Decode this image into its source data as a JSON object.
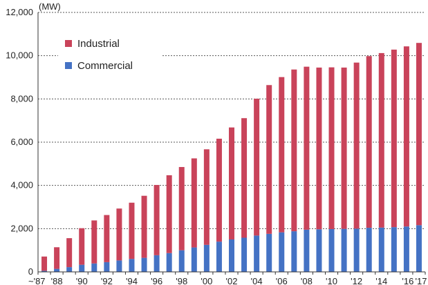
{
  "chart_data": {
    "type": "bar",
    "stacked": true,
    "unit_label": "(MW)",
    "categories": [
      "~'87",
      "'88",
      "'89",
      "'90",
      "'91",
      "'92",
      "'93",
      "'94",
      "'95",
      "'96",
      "'97",
      "'98",
      "'99",
      "'00",
      "'01",
      "'02",
      "'03",
      "'04",
      "'05",
      "'06",
      "'07",
      "'08",
      "'09",
      "'10",
      "'11",
      "'12",
      "'13",
      "'14",
      "'15",
      "'16",
      "'17"
    ],
    "x_tick_labels": [
      "~'87",
      "'88",
      "",
      "'90",
      "",
      "'92",
      "",
      "'94",
      "",
      "'96",
      "",
      "'98",
      "",
      "'00",
      "",
      "'02",
      "",
      "'04",
      "",
      "'06",
      "",
      "'08",
      "",
      "'10",
      "",
      "'12",
      "",
      "'14",
      "",
      "'16",
      "'17"
    ],
    "series": [
      {
        "name": "Commercial",
        "color": "#4472c4",
        "values": [
          50,
          140,
          220,
          330,
          390,
          450,
          530,
          600,
          650,
          770,
          870,
          1000,
          1130,
          1250,
          1400,
          1500,
          1580,
          1680,
          1760,
          1830,
          1880,
          1950,
          1970,
          1980,
          1990,
          2000,
          2040,
          2050,
          2070,
          2100,
          2160
        ]
      },
      {
        "name": "Industrial",
        "color": "#c9435a",
        "values": [
          660,
          1000,
          1340,
          1690,
          1990,
          2180,
          2400,
          2600,
          2870,
          3250,
          3600,
          3850,
          4120,
          4420,
          4760,
          5180,
          5530,
          6330,
          6880,
          7180,
          7480,
          7540,
          7480,
          7480,
          7460,
          7680,
          7940,
          8070,
          8210,
          8330,
          8430
        ]
      }
    ],
    "ylim": [
      0,
      12000
    ],
    "y_ticks": [
      0,
      2000,
      4000,
      6000,
      8000,
      10000,
      12000
    ],
    "y_tick_labels": [
      "0",
      "2,000",
      "4,000",
      "6,000",
      "8,000",
      "10,000",
      "12,000"
    ],
    "grid": "dotted horizontal",
    "legend_position": "top-left",
    "legend": [
      "Industrial",
      "Commercial"
    ]
  }
}
